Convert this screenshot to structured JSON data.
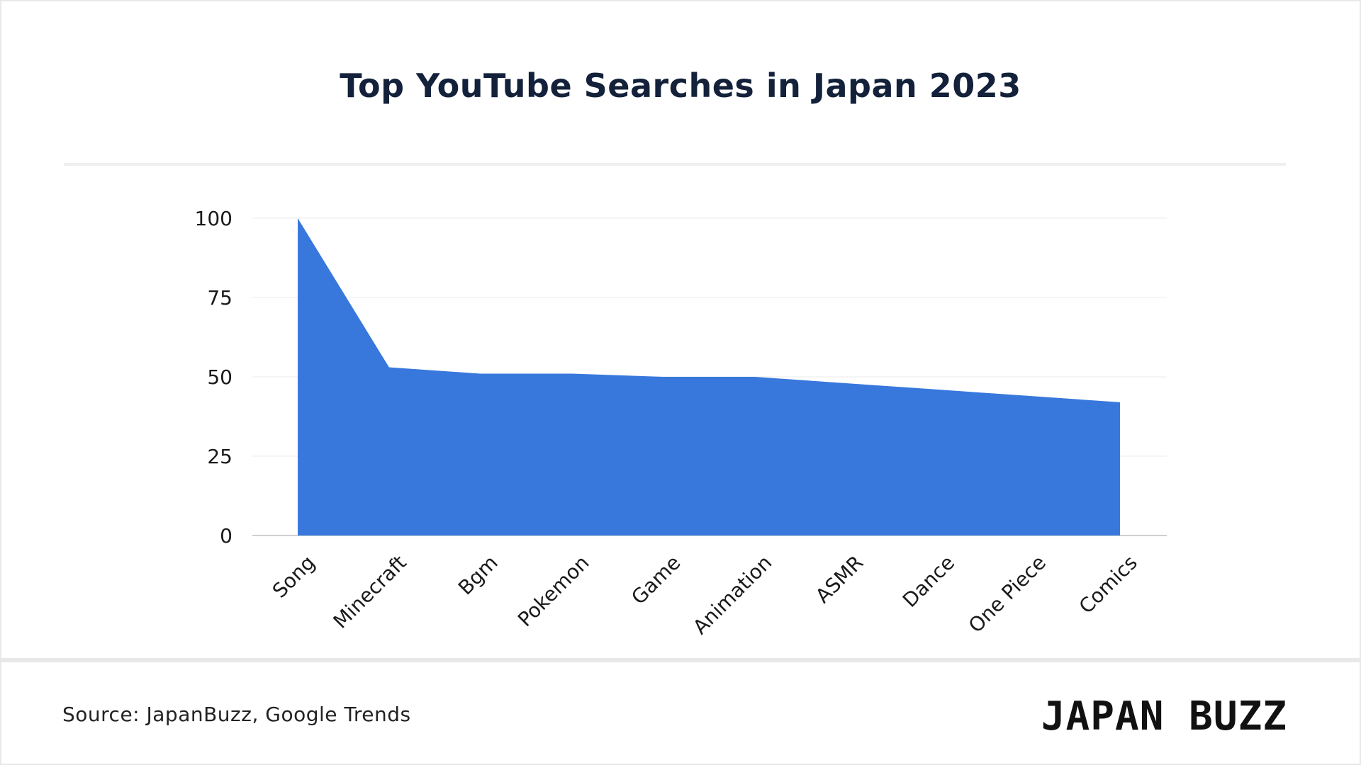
{
  "title": "Top YouTube Searches in Japan 2023",
  "source": "Source: JapanBuzz, Google Trends",
  "logo": "JAPAN BUZZ",
  "colors": {
    "area": "#3878dd",
    "title": "#13213a",
    "grid": "#ebebeb"
  },
  "chart_data": {
    "type": "area",
    "title": "Top YouTube Searches in Japan 2023",
    "categories": [
      "Song",
      "Minecraft",
      "Bgm",
      "Pokemon",
      "Game",
      "Animation",
      "ASMR",
      "Dance",
      "One Piece",
      "Comics"
    ],
    "series": [
      {
        "values": [
          100,
          53,
          51,
          51,
          50,
          50,
          48,
          46,
          44,
          42
        ]
      }
    ],
    "ylim": [
      0,
      100
    ],
    "yticks": [
      0,
      25,
      50,
      75,
      100
    ],
    "xlabel": "",
    "ylabel": "",
    "grid": true,
    "legend": "none"
  }
}
